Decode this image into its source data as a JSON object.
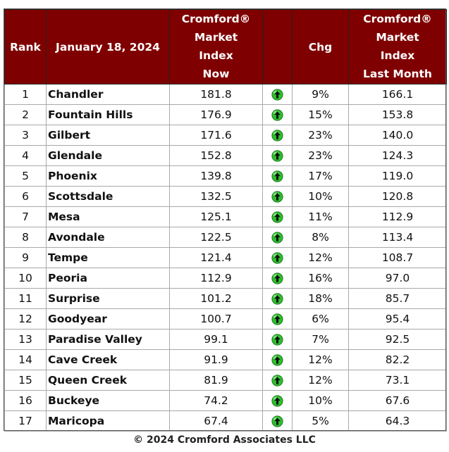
{
  "header": {
    "rank": "Rank",
    "date": "January 18, 2024",
    "now": [
      "Cromford®",
      "Market",
      "Index",
      "Now"
    ],
    "chg": "Chg",
    "last": [
      "Cromford®",
      "Market",
      "Index",
      "Last Month"
    ]
  },
  "rows": [
    {
      "rank": "1",
      "city": "Chandler",
      "now": "181.8",
      "chg": "9%",
      "last": "166.1"
    },
    {
      "rank": "2",
      "city": "Fountain Hills",
      "now": "176.9",
      "chg": "15%",
      "last": "153.8"
    },
    {
      "rank": "3",
      "city": "Gilbert",
      "now": "171.6",
      "chg": "23%",
      "last": "140.0"
    },
    {
      "rank": "4",
      "city": "Glendale",
      "now": "152.8",
      "chg": "23%",
      "last": "124.3"
    },
    {
      "rank": "5",
      "city": "Phoenix",
      "now": "139.8",
      "chg": "17%",
      "last": "119.0"
    },
    {
      "rank": "6",
      "city": "Scottsdale",
      "now": "132.5",
      "chg": "10%",
      "last": "120.8"
    },
    {
      "rank": "7",
      "city": "Mesa",
      "now": "125.1",
      "chg": "11%",
      "last": "112.9"
    },
    {
      "rank": "8",
      "city": "Avondale",
      "now": "122.5",
      "chg": "8%",
      "last": "113.4"
    },
    {
      "rank": "9",
      "city": "Tempe",
      "now": "121.4",
      "chg": "12%",
      "last": "108.7"
    },
    {
      "rank": "10",
      "city": "Peoria",
      "now": "112.9",
      "chg": "16%",
      "last": "97.0"
    },
    {
      "rank": "11",
      "city": "Surprise",
      "now": "101.2",
      "chg": "18%",
      "last": "85.7"
    },
    {
      "rank": "12",
      "city": "Goodyear",
      "now": "100.7",
      "chg": "6%",
      "last": "95.4"
    },
    {
      "rank": "13",
      "city": "Paradise Valley",
      "now": "99.1",
      "chg": "7%",
      "last": "92.5"
    },
    {
      "rank": "14",
      "city": "Cave Creek",
      "now": "91.9",
      "chg": "12%",
      "last": "82.2"
    },
    {
      "rank": "15",
      "city": "Queen Creek",
      "now": "81.9",
      "chg": "12%",
      "last": "73.1"
    },
    {
      "rank": "16",
      "city": "Buckeye",
      "now": "74.2",
      "chg": "10%",
      "last": "67.6"
    },
    {
      "rank": "17",
      "city": "Maricopa",
      "now": "67.4",
      "chg": "5%",
      "last": "64.3"
    }
  ],
  "trend_icon": "green-up-arrow-icon",
  "colors": {
    "header_bg": "#7f0000",
    "arrow_green": "#2dbe2d"
  },
  "footer": "© 2024 Cromford Associates LLC"
}
